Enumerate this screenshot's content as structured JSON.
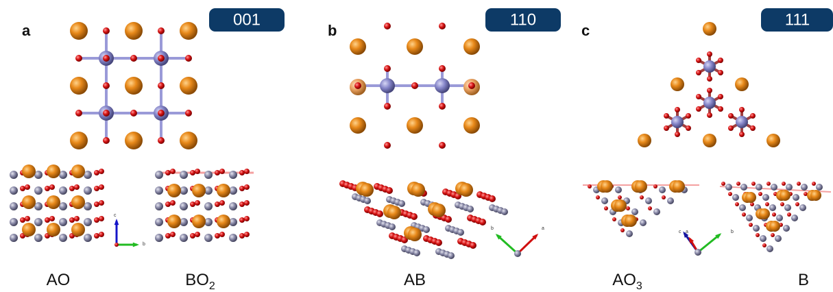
{
  "panels": [
    {
      "label": "a",
      "orientation": "001",
      "captions": [
        {
          "main": "AO"
        },
        {
          "main": "BO",
          "sub": "2"
        }
      ],
      "axes": [
        "c",
        "b"
      ]
    },
    {
      "label": "b",
      "orientation": "110",
      "captions": [
        {
          "main": "AB"
        }
      ],
      "axes": [
        "b",
        "a"
      ]
    },
    {
      "label": "c",
      "orientation": "111",
      "captions": [
        {
          "main": "AO",
          "sub": "3"
        },
        {
          "main": "B"
        }
      ],
      "axes": [
        "c",
        "a",
        "b"
      ]
    }
  ]
}
